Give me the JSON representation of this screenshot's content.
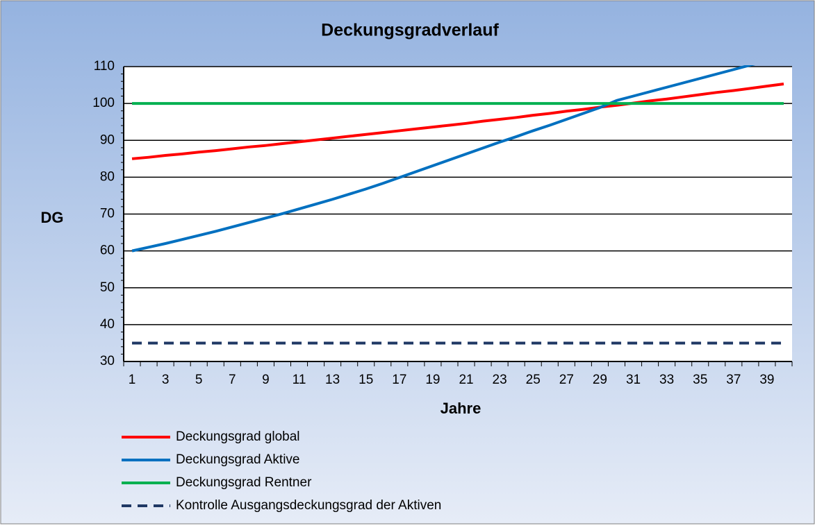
{
  "chart_data": {
    "type": "line",
    "title": "Deckungsgradverlauf",
    "y_label": "DG",
    "x_label": "Jahre",
    "categories": [
      1,
      null,
      3,
      null,
      5,
      null,
      7,
      null,
      9,
      null,
      11,
      null,
      13,
      null,
      15,
      null,
      17,
      null,
      19,
      null,
      21,
      null,
      23,
      null,
      25,
      null,
      27,
      null,
      29,
      null,
      31,
      null,
      33,
      null,
      35,
      null,
      37,
      null,
      39,
      null
    ],
    "ylim": [
      30,
      110
    ],
    "yticks": [
      30,
      40,
      50,
      60,
      70,
      80,
      90,
      100,
      110
    ],
    "grid": true,
    "legend": "bottom",
    "series": [
      {
        "name": "Deckungsgrad global",
        "color": "#ff0000",
        "dashed": false,
        "values": [
          85.0,
          85.4,
          85.9,
          86.3,
          86.8,
          87.2,
          87.7,
          88.2,
          88.6,
          89.1,
          89.6,
          90.1,
          90.6,
          91.1,
          91.6,
          92.1,
          92.6,
          93.1,
          93.6,
          94.1,
          94.6,
          95.2,
          95.7,
          96.2,
          96.8,
          97.3,
          97.9,
          98.4,
          99.0,
          99.5,
          100.1,
          100.7,
          101.2,
          101.8,
          102.4,
          103.0,
          103.5,
          104.1,
          104.7,
          105.3
        ]
      },
      {
        "name": "Deckungsgrad Aktive",
        "color": "#0070c0",
        "dashed": false,
        "values": [
          60.0,
          61.0,
          62.0,
          63.1,
          64.2,
          65.3,
          66.5,
          67.7,
          68.9,
          70.1,
          71.4,
          72.7,
          74.0,
          75.4,
          76.8,
          78.3,
          79.9,
          81.5,
          83.1,
          84.7,
          86.3,
          87.9,
          89.5,
          91.0,
          92.6,
          94.1,
          95.7,
          97.3,
          98.9,
          100.8,
          102.0,
          103.2,
          104.4,
          105.6,
          106.8,
          108.0,
          109.2,
          110.4,
          111.6,
          112.8
        ]
      },
      {
        "name": "Deckungsgrad Rentner",
        "color": "#00b050",
        "dashed": false,
        "values": [
          100,
          100,
          100,
          100,
          100,
          100,
          100,
          100,
          100,
          100,
          100,
          100,
          100,
          100,
          100,
          100,
          100,
          100,
          100,
          100,
          100,
          100,
          100,
          100,
          100,
          100,
          100,
          100,
          100,
          100,
          100,
          100,
          100,
          100,
          100,
          100,
          100,
          100,
          100,
          100
        ]
      },
      {
        "name": "Kontrolle Ausgangsdeckungsgrad der Aktiven",
        "color": "#1f3864",
        "dashed": true,
        "values": [
          35,
          35,
          35,
          35,
          35,
          35,
          35,
          35,
          35,
          35,
          35,
          35,
          35,
          35,
          35,
          35,
          35,
          35,
          35,
          35,
          35,
          35,
          35,
          35,
          35,
          35,
          35,
          35,
          35,
          35,
          35,
          35,
          35,
          35,
          35,
          35,
          35,
          35,
          35,
          35
        ]
      }
    ]
  }
}
